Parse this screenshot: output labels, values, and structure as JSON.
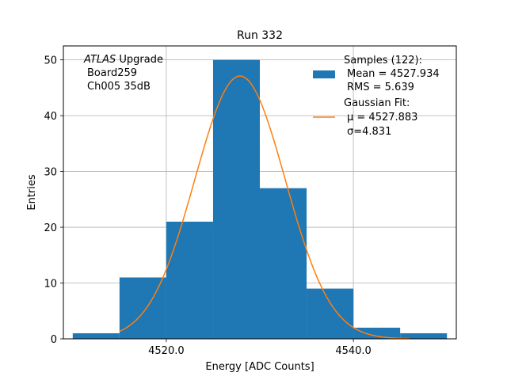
{
  "chart_data": {
    "type": "bar",
    "title": "Run 332",
    "xlabel": "Energy [ADC Counts]",
    "ylabel": "Entries",
    "xlim": [
      4509,
      4551
    ],
    "ylim": [
      0,
      52.5
    ],
    "xticks": [
      4520,
      4540
    ],
    "xtick_labels": [
      "4520.0",
      "4540.0"
    ],
    "yticks": [
      0,
      10,
      20,
      30,
      40,
      50
    ],
    "ytick_labels": [
      "0",
      "10",
      "20",
      "30",
      "40",
      "50"
    ],
    "grid": true,
    "bins": [
      {
        "x0": 4510,
        "x1": 4515,
        "count": 1
      },
      {
        "x0": 4515,
        "x1": 4520,
        "count": 11
      },
      {
        "x0": 4520,
        "x1": 4525,
        "count": 21
      },
      {
        "x0": 4525,
        "x1": 4530,
        "count": 50
      },
      {
        "x0": 4530,
        "x1": 4535,
        "count": 27
      },
      {
        "x0": 4535,
        "x1": 4540,
        "count": 9
      },
      {
        "x0": 4540,
        "x1": 4545,
        "count": 2
      },
      {
        "x0": 4545,
        "x1": 4550,
        "count": 1
      }
    ],
    "fit": {
      "mu": 4527.883,
      "sigma": 4.831,
      "amplitude": 47.1,
      "x_start": 4515,
      "x_end": 4546
    },
    "annotation": {
      "line1_italic": "ATLAS",
      "line1_rest": " Upgrade",
      "line2": "Board259",
      "line3": "Ch005 35dB"
    },
    "legend": {
      "position": "top-right",
      "samples_title": "Samples (122):",
      "samples_mean": "Mean = 4527.934",
      "samples_rms": "RMS = 5.639",
      "fit_title": "Gaussian Fit:",
      "fit_mu": "μ = 4527.883",
      "fit_sigma": "σ=4.831"
    },
    "colors": {
      "bars": "#1f77b4",
      "fit": "#ff7f0e",
      "grid": "#b0b0b0"
    }
  }
}
